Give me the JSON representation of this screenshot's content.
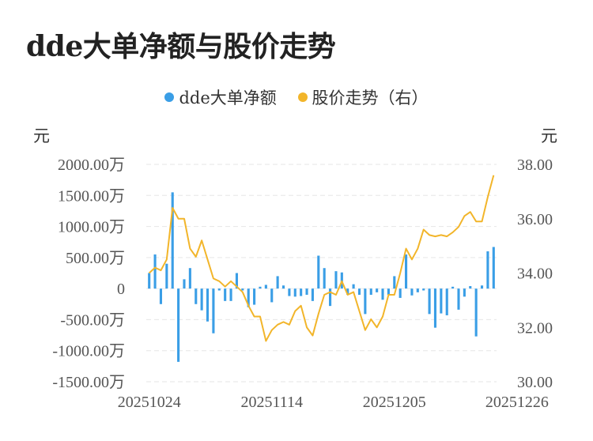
{
  "chart_data": {
    "type": "bar+line",
    "title": "dde大单净额与股价走势",
    "legend": [
      {
        "name": "dde大单净额",
        "color": "#3a9ee6",
        "marker": "circle"
      },
      {
        "name": "股价走势（右）",
        "color": "#f2b52a",
        "marker": "circle"
      }
    ],
    "legend_position": "top-center",
    "left_axis": {
      "unit": "元",
      "ticks": [
        "2000.00万",
        "1500.00万",
        "1000.00万",
        "500.00万",
        "0",
        "-500.00万",
        "-1000.00万",
        "-1500.00万"
      ],
      "range": [
        -1500,
        2000
      ]
    },
    "right_axis": {
      "unit": "元",
      "ticks": [
        "38.00",
        "36.00",
        "34.00",
        "32.00",
        "30.00"
      ],
      "range": [
        30,
        38
      ]
    },
    "x_ticks": [
      "20251024",
      "20251114",
      "20251205",
      "20251226"
    ],
    "x_tick_index": [
      0,
      21,
      42,
      63
    ],
    "grid": "horizontal dashed",
    "series": [
      {
        "name": "dde大单净额",
        "type": "bar",
        "axis": "left",
        "unit": "万",
        "values": [
          250,
          550,
          -250,
          400,
          1550,
          -1180,
          150,
          330,
          -250,
          -350,
          -530,
          -720,
          -30,
          -200,
          -200,
          250,
          -30,
          -300,
          -260,
          30,
          60,
          -220,
          200,
          50,
          -120,
          -130,
          -120,
          -100,
          -200,
          530,
          330,
          -280,
          280,
          260,
          -100,
          70,
          -100,
          -410,
          -100,
          -60,
          -180,
          -100,
          200,
          -150,
          550,
          -110,
          -60,
          -30,
          -410,
          -630,
          -400,
          -430,
          30,
          -340,
          -130,
          40,
          -770,
          50,
          600,
          670
        ]
      },
      {
        "name": "股价走势（右）",
        "type": "line",
        "axis": "right",
        "values": [
          34.0,
          34.2,
          34.1,
          34.5,
          36.4,
          36.0,
          36.0,
          34.9,
          34.6,
          35.2,
          34.5,
          33.8,
          33.7,
          33.5,
          33.7,
          33.5,
          33.3,
          32.8,
          32.4,
          32.4,
          31.5,
          31.9,
          32.1,
          32.2,
          32.1,
          32.6,
          32.8,
          32.0,
          31.7,
          32.5,
          33.2,
          33.3,
          33.2,
          33.7,
          33.2,
          33.3,
          32.6,
          31.9,
          32.3,
          32.0,
          32.4,
          33.2,
          33.2,
          34.0,
          34.9,
          34.5,
          34.9,
          35.6,
          35.4,
          35.35,
          35.4,
          35.35,
          35.5,
          35.7,
          36.1,
          36.25,
          35.9,
          35.9,
          36.8,
          37.6
        ]
      }
    ]
  }
}
